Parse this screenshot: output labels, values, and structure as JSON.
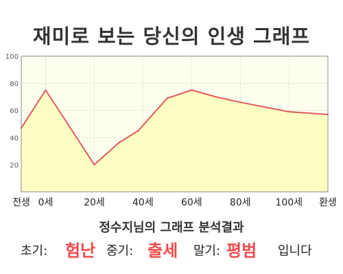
{
  "title": "재미로 보는 당신의 인생 그래프",
  "result": {
    "heading": "정수지님의 그래프 분석결과",
    "early_label": "초기:",
    "early_value": "험난",
    "middle_label": "중기:",
    "middle_value": "출세",
    "late_label": "말기:",
    "late_value": "평범",
    "ending": "입니다"
  },
  "colors": {
    "line": "#e05a5a",
    "fill": "#ffffc4",
    "background": "#fffff0",
    "highlight": "#f24a4a"
  },
  "chart_data": {
    "type": "area",
    "x": [
      -10,
      0,
      20,
      30,
      38,
      50,
      60,
      70,
      80,
      100,
      116
    ],
    "values": [
      47,
      75,
      20,
      36,
      45,
      69,
      75,
      70,
      66,
      59,
      57
    ],
    "x_ticks": [
      {
        "x": -10,
        "label": "전생"
      },
      {
        "x": 0,
        "label": "0세"
      },
      {
        "x": 20,
        "label": "20세"
      },
      {
        "x": 40,
        "label": "40세"
      },
      {
        "x": 60,
        "label": "60세"
      },
      {
        "x": 80,
        "label": "80세"
      },
      {
        "x": 100,
        "label": "100세"
      },
      {
        "x": 116,
        "label": "환생"
      }
    ],
    "y_ticks": [
      100,
      80,
      60,
      40,
      20
    ],
    "ylim": [
      0,
      100
    ],
    "xlim": [
      -10,
      116
    ],
    "grid": true
  }
}
